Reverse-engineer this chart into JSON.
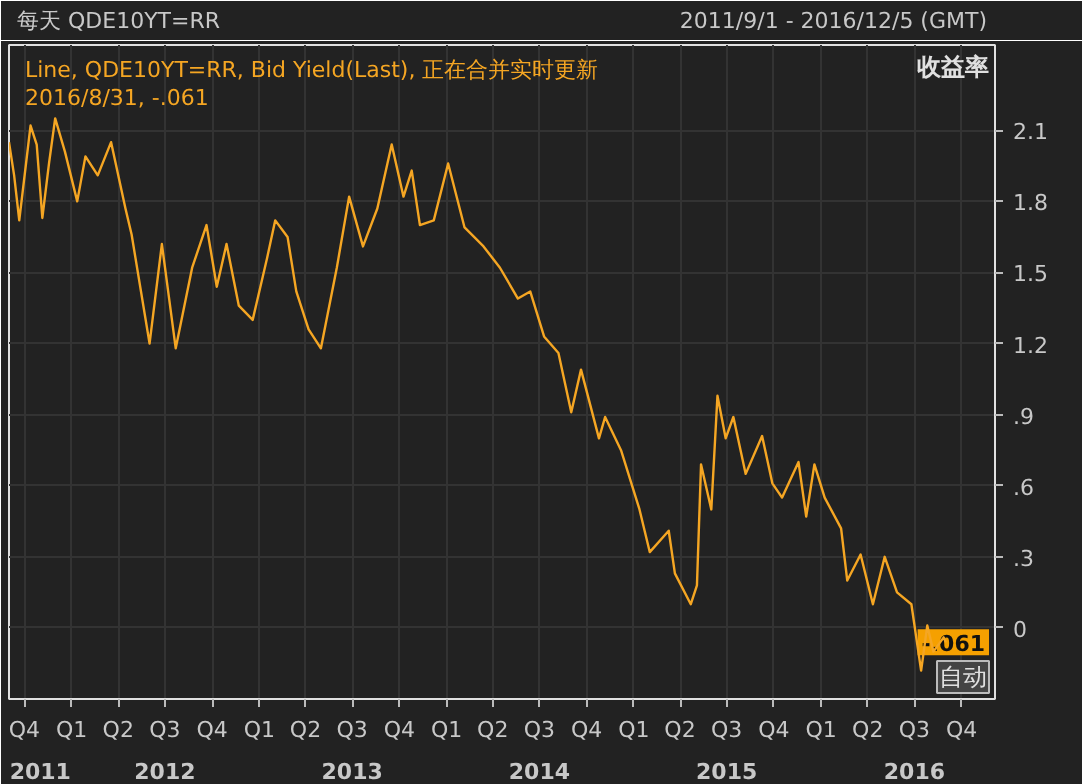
{
  "chart_data": {
    "type": "line",
    "title": "每天 QDE10YT=RR",
    "subtitle": "2011/9/1 - 2016/12/5 (GMT)",
    "ylabel": "收益率",
    "annotations": [
      "2016/8/31, -.061",
      {
        "text": "-.061",
        "y": -0.061
      },
      "自动"
    ],
    "legend": "top left",
    "grid": true,
    "line_style": "solid",
    "xlim": [
      "2011-09-01",
      "2016-12-05"
    ],
    "x2lim": [
      "2011-09-01",
      "2016-12-05"
    ],
    "xticks": [
      {
        "value": "2011-10-01",
        "label": "Q4"
      },
      {
        "value": "2012-01-01",
        "label": "Q1"
      },
      {
        "value": "2012-04-01",
        "label": "Q2"
      },
      {
        "value": "2012-07-01",
        "label": "Q3"
      },
      {
        "value": "2012-10-01",
        "label": "Q4"
      },
      {
        "value": "2013-01-01",
        "label": "Q1"
      },
      {
        "value": "2013-04-01",
        "label": "Q2"
      },
      {
        "value": "2013-07-01",
        "label": "Q3"
      },
      {
        "value": "2013-10-01",
        "label": "Q4"
      },
      {
        "value": "2014-01-01",
        "label": "Q1"
      },
      {
        "value": "2014-04-01",
        "label": "Q2"
      },
      {
        "value": "2014-07-01",
        "label": "Q3"
      },
      {
        "value": "2014-10-01",
        "label": "Q4"
      },
      {
        "value": "2015-01-01",
        "label": "Q1"
      },
      {
        "value": "2015-04-01",
        "label": "Q2"
      },
      {
        "value": "2015-07-01",
        "label": "Q3"
      },
      {
        "value": "2015-10-01",
        "label": "Q4"
      },
      {
        "value": "2016-01-01",
        "label": "Q1"
      },
      {
        "value": "2016-04-01",
        "label": "Q2"
      },
      {
        "value": "2016-07-01",
        "label": "Q3"
      },
      {
        "value": "2016-10-01",
        "label": "Q4"
      }
    ],
    "x2ticks": [
      {
        "value": "2011-11-01",
        "label": "2011"
      },
      {
        "value": "2012-07-01",
        "label": "2012"
      },
      {
        "value": "2013-07-01",
        "label": "2013"
      },
      {
        "value": "2014-07-01",
        "label": "2014"
      },
      {
        "value": "2015-07-01",
        "label": "2015"
      },
      {
        "value": "2016-07-01",
        "label": "2016"
      }
    ],
    "ylim": [
      -0.3,
      2.46
    ],
    "yticks": [
      {
        "value": 0,
        "label": "0"
      },
      {
        "value": 0.3,
        "label": ".3"
      },
      {
        "value": 0.6,
        "label": ".6"
      },
      {
        "value": 0.9,
        "label": ".9"
      },
      1.2,
      1.5,
      1.8,
      2.1
    ],
    "series": [
      {
        "name": "Line, QDE10YT=RR, Bid Yield(Last), 正在合并实时更新",
        "color": "#f5a623",
        "x": [
          "2011-09-01",
          "2011-09-11",
          "2011-09-21",
          "2011-10-13",
          "2011-10-25",
          "2011-11-05",
          "2011-11-18",
          "2011-11-30",
          "2011-12-19",
          "2012-01-12",
          "2012-01-28",
          "2012-02-21",
          "2012-03-18",
          "2012-04-15",
          "2012-04-27",
          "2012-06-01",
          "2012-06-25",
          "2012-07-22",
          "2012-08-23",
          "2012-09-20",
          "2012-10-10",
          "2012-10-29",
          "2012-11-22",
          "2012-12-19",
          "2013-01-16",
          "2013-02-01",
          "2013-02-25",
          "2013-03-14",
          "2013-04-07",
          "2013-05-01",
          "2013-06-01",
          "2013-06-25",
          "2013-07-22",
          "2013-08-19",
          "2013-09-16",
          "2013-10-09",
          "2013-10-25",
          "2013-11-10",
          "2013-12-07",
          "2014-01-04",
          "2014-02-05",
          "2014-03-14",
          "2014-04-15",
          "2014-05-20",
          "2014-06-13",
          "2014-07-10",
          "2014-08-07",
          "2014-09-01",
          "2014-09-20",
          "2014-10-25",
          "2014-11-06",
          "2014-12-07",
          "2015-01-12",
          "2015-02-01",
          "2015-03-10",
          "2015-03-22",
          "2015-04-22",
          "2015-05-04",
          "2015-05-12",
          "2015-06-01",
          "2015-06-13",
          "2015-06-29",
          "2015-07-14",
          "2015-08-07",
          "2015-09-08",
          "2015-09-28",
          "2015-10-17",
          "2015-11-18",
          "2015-12-03",
          "2015-12-19",
          "2016-01-08",
          "2016-02-09",
          "2016-02-21",
          "2016-03-18",
          "2016-04-11",
          "2016-05-04",
          "2016-05-28",
          "2016-06-25",
          "2016-07-14",
          "2016-07-26",
          "2016-08-07",
          "2016-08-27",
          "2016-08-31"
        ],
        "values": [
          2.05,
          1.91,
          1.72,
          2.12,
          2.04,
          1.73,
          1.96,
          2.15,
          2.01,
          1.8,
          1.99,
          1.91,
          2.05,
          1.77,
          1.66,
          1.2,
          1.62,
          1.18,
          1.52,
          1.7,
          1.44,
          1.62,
          1.36,
          1.3,
          1.56,
          1.72,
          1.65,
          1.42,
          1.26,
          1.18,
          1.52,
          1.82,
          1.61,
          1.77,
          2.04,
          1.82,
          1.93,
          1.7,
          1.72,
          1.96,
          1.69,
          1.61,
          1.52,
          1.39,
          1.42,
          1.23,
          1.16,
          0.91,
          1.09,
          0.8,
          0.89,
          0.75,
          0.5,
          0.32,
          0.41,
          0.23,
          0.1,
          0.18,
          0.69,
          0.5,
          0.98,
          0.8,
          0.89,
          0.65,
          0.81,
          0.61,
          0.55,
          0.7,
          0.47,
          0.69,
          0.55,
          0.42,
          0.2,
          0.31,
          0.1,
          0.3,
          0.15,
          0.1,
          -0.18,
          0.01,
          -0.1,
          -0.04,
          -0.061
        ]
      }
    ]
  }
}
